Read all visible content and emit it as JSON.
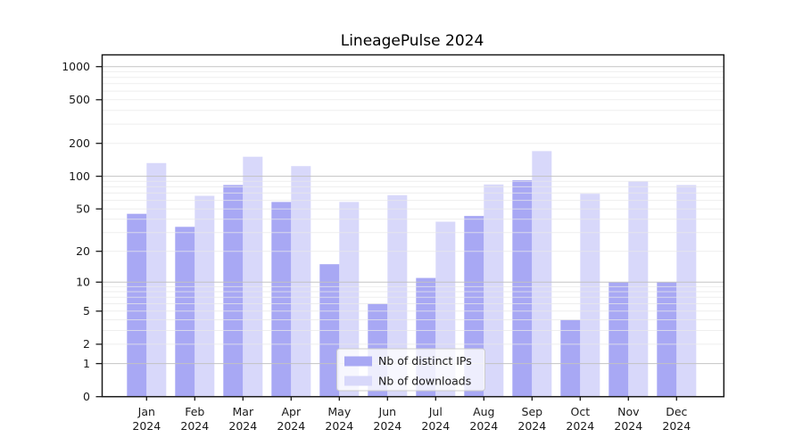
{
  "chart_data": {
    "type": "bar",
    "title": "LineagePulse 2024",
    "categories": [
      "Jan 2024",
      "Feb 2024",
      "Mar 2024",
      "Apr 2024",
      "May 2024",
      "Jun 2024",
      "Jul 2024",
      "Aug 2024",
      "Sep 2024",
      "Oct 2024",
      "Nov 2024",
      "Dec 2024"
    ],
    "series": [
      {
        "name": "Nb of distinct IPs",
        "color": "#a8a8f4",
        "values": [
          45,
          34,
          83,
          58,
          15,
          6,
          11,
          43,
          92,
          4,
          10,
          10
        ]
      },
      {
        "name": "Nb of downloads",
        "color": "#d8d8fa",
        "values": [
          132,
          66,
          151,
          124,
          58,
          67,
          38,
          84,
          170,
          69,
          90,
          83
        ]
      }
    ],
    "xlabel": "",
    "ylabel": "",
    "yscale": "log1p",
    "y_tick_labels": [
      0,
      1,
      2,
      5,
      10,
      20,
      50,
      100,
      200,
      500,
      1000
    ],
    "ylim": [
      0,
      1250
    ],
    "grid": true,
    "legend_position": "lower-center"
  },
  "colors": {
    "background": "#ffffff",
    "text": "#1a1a1a",
    "grid_major": "#c2c2c2",
    "grid_minor": "#e9e9e9",
    "spine": "#1a1a1a",
    "legend_border": "#cccccc",
    "legend_background": "#ffffff"
  }
}
